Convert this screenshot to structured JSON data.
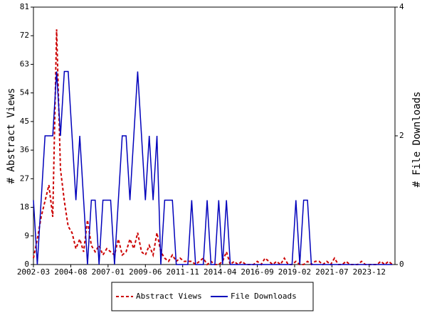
{
  "chart_data": {
    "type": "line",
    "x": [
      "2002-03",
      "2002-06",
      "2002-09",
      "2002-12",
      "2003-03",
      "2003-06",
      "2003-09",
      "2003-12",
      "2004-03",
      "2004-06",
      "2004-09",
      "2004-12",
      "2005-03",
      "2005-06",
      "2005-09",
      "2005-12",
      "2006-03",
      "2006-06",
      "2006-09",
      "2006-12",
      "2007-03",
      "2007-06",
      "2007-09",
      "2007-12",
      "2008-03",
      "2008-06",
      "2008-09",
      "2008-12",
      "2009-03",
      "2009-06",
      "2009-09",
      "2009-12",
      "2010-03",
      "2010-06",
      "2010-09",
      "2010-12",
      "2011-03",
      "2011-06",
      "2011-09",
      "2011-12",
      "2012-03",
      "2012-06",
      "2012-09",
      "2012-12",
      "2013-03",
      "2013-06",
      "2013-09",
      "2013-12",
      "2014-03",
      "2014-06",
      "2014-09",
      "2014-12",
      "2015-03",
      "2015-06",
      "2015-09",
      "2015-12",
      "2016-03",
      "2016-06",
      "2016-09",
      "2016-12",
      "2017-03",
      "2017-06",
      "2017-09",
      "2017-12",
      "2018-03",
      "2018-06",
      "2018-09",
      "2018-12",
      "2019-03",
      "2019-06",
      "2019-09",
      "2019-12",
      "2020-03",
      "2020-06",
      "2020-09",
      "2020-12",
      "2021-03",
      "2021-06",
      "2021-09",
      "2021-12",
      "2022-03",
      "2022-06",
      "2022-09",
      "2022-12",
      "2023-03",
      "2023-06",
      "2023-09",
      "2023-12",
      "2024-03",
      "2024-06",
      "2024-09",
      "2024-12",
      "2025-03",
      "2025-06"
    ],
    "series": [
      {
        "name": "Abstract Views",
        "color": "#cc0000",
        "dash": true,
        "values": [
          2,
          8,
          15,
          20,
          25,
          15,
          74,
          30,
          20,
          12,
          10,
          5,
          8,
          4,
          14,
          6,
          4,
          6,
          3,
          5,
          4,
          3,
          8,
          3,
          4,
          8,
          5,
          10,
          4,
          3,
          6,
          3,
          10,
          4,
          2,
          1,
          3,
          1,
          2,
          1,
          1,
          1,
          0,
          1,
          2,
          0,
          1,
          0,
          0,
          1,
          4,
          0,
          1,
          0,
          1,
          0,
          0,
          0,
          1,
          0,
          2,
          1,
          0,
          1,
          0,
          2,
          0,
          0,
          1,
          0,
          0,
          1,
          0,
          1,
          1,
          0,
          1,
          0,
          2,
          0,
          0,
          1,
          0,
          0,
          0,
          1,
          0,
          0,
          0,
          0,
          1,
          0,
          1,
          0
        ]
      },
      {
        "name": "File Downloads",
        "color": "#0000bb",
        "axis": "y2",
        "values": [
          1,
          0,
          1,
          2,
          2,
          2,
          3,
          2,
          3,
          3,
          2,
          1,
          2,
          1,
          0,
          1,
          1,
          0,
          1,
          1,
          1,
          0,
          1,
          2,
          2,
          1,
          2,
          3,
          2,
          1,
          2,
          1,
          2,
          0,
          1,
          1,
          1,
          0,
          0,
          0,
          0,
          1,
          0,
          0,
          0,
          1,
          0,
          0,
          1,
          0,
          1,
          0,
          0,
          0,
          0,
          0,
          0,
          0,
          0,
          0,
          0,
          0,
          0,
          0,
          0,
          0,
          0,
          0,
          1,
          0,
          1,
          1,
          0,
          0,
          0,
          0,
          0,
          0,
          0,
          0,
          0,
          0,
          0,
          0,
          0,
          0,
          0,
          0,
          0,
          0,
          0,
          0,
          0,
          0
        ]
      }
    ],
    "xlim": [
      "2002-03",
      "2025-08"
    ],
    "xticks": [
      "2002-03",
      "2004-08",
      "2007-01",
      "2009-06",
      "2011-11",
      "2014-04",
      "2016-09",
      "2019-02",
      "2021-07",
      "2023-12"
    ],
    "ylim": [
      0,
      81
    ],
    "yticks": [
      0,
      9,
      18,
      27,
      36,
      45,
      54,
      63,
      72,
      81
    ],
    "y2lim": [
      0,
      4
    ],
    "y2ticks": [
      0,
      2,
      4
    ],
    "ylabel": "# Abstract Views",
    "y2label": "# File Downloads"
  }
}
